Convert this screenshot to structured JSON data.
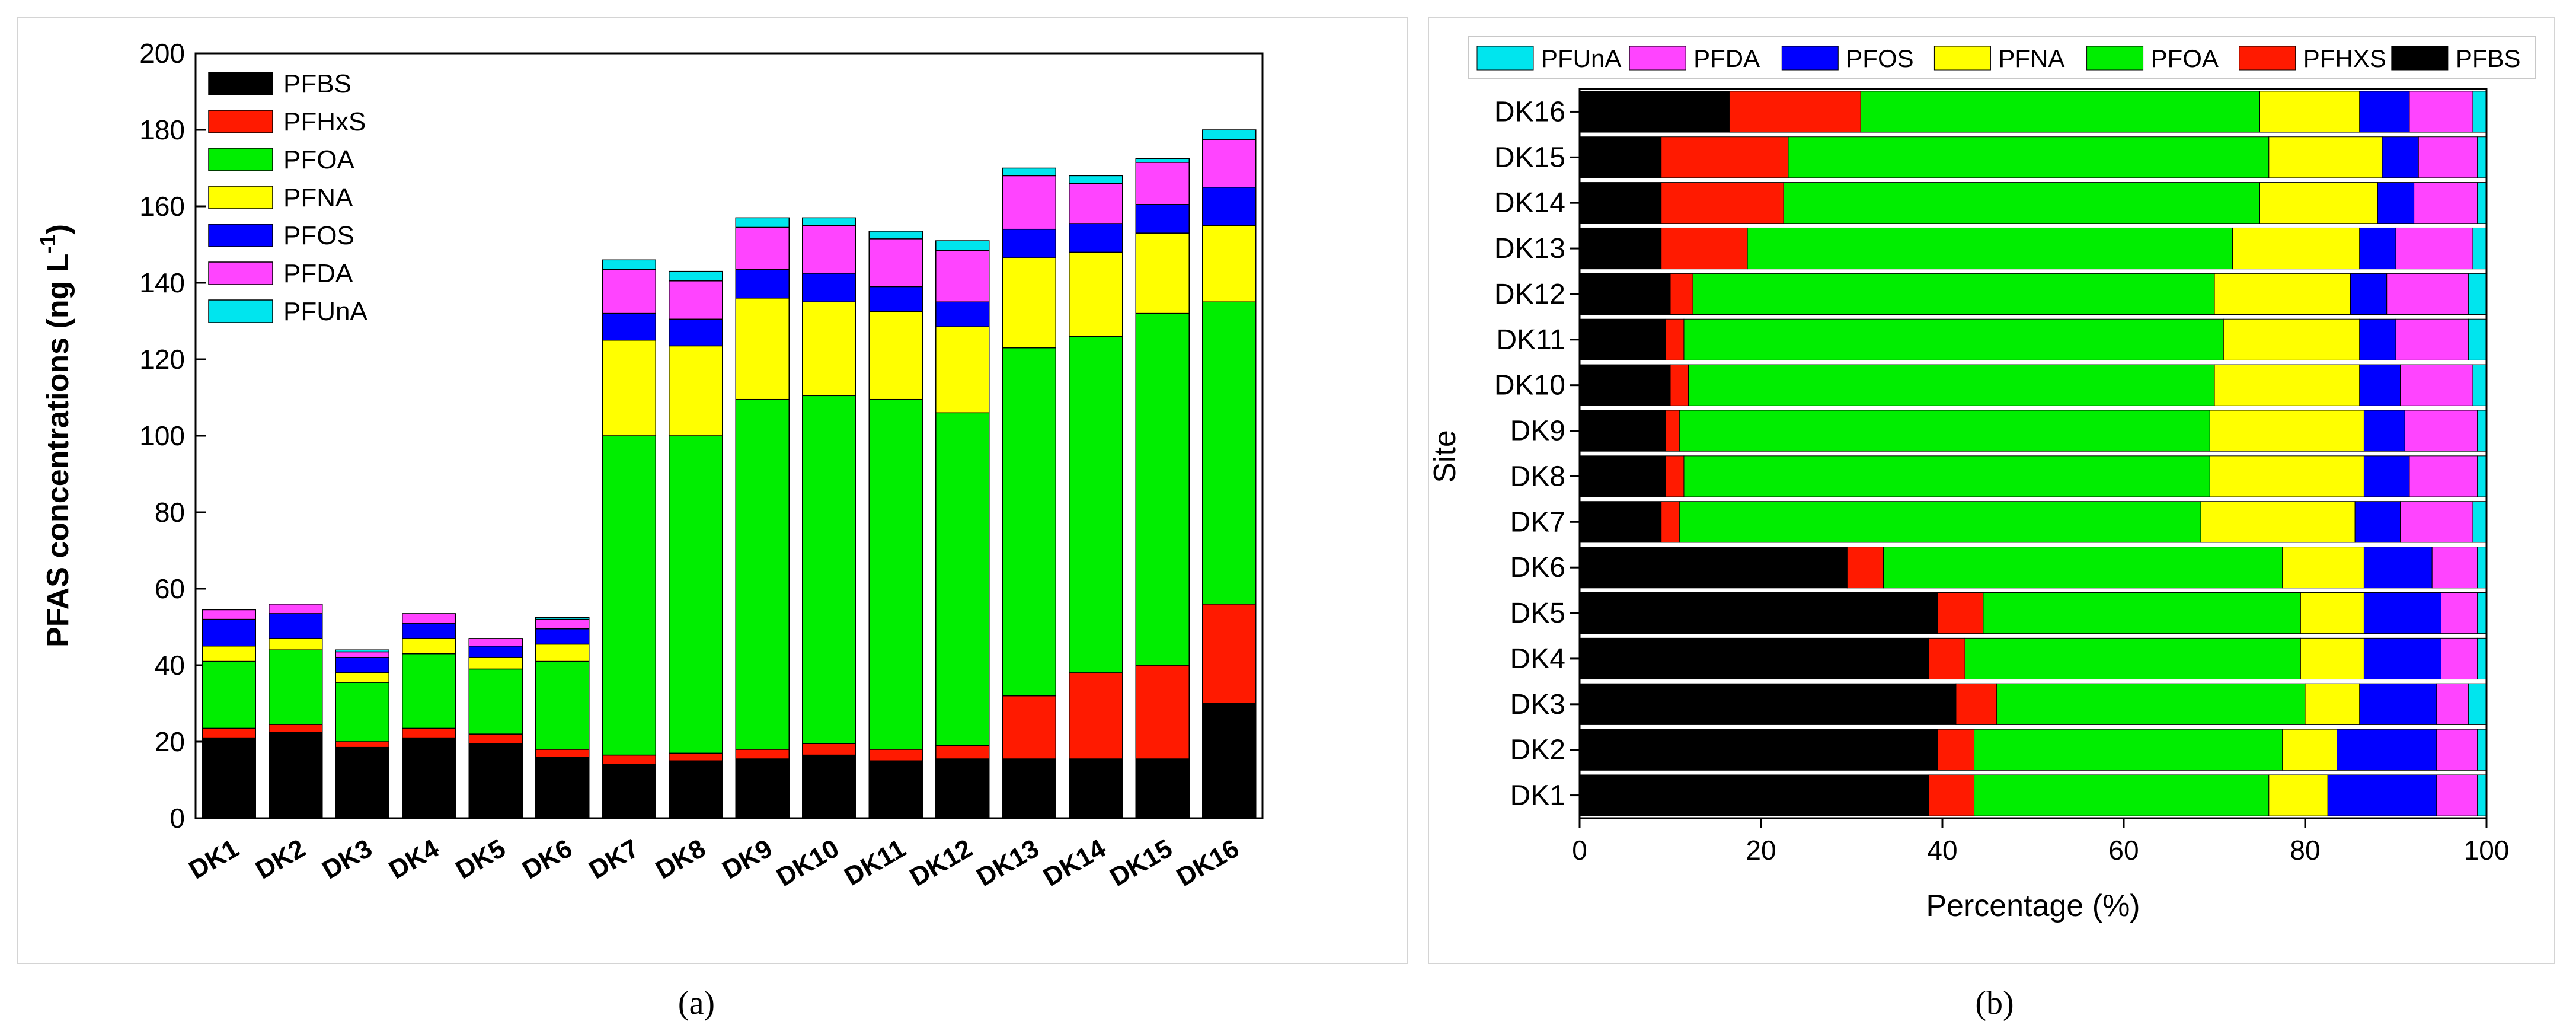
{
  "chart_data": [
    {
      "type": "bar",
      "stacked": true,
      "panel_caption": "(a)",
      "ylabel": "PFAS concentrations (ng L",
      "ylabel_superscript": "-1",
      "ylabel_suffix": ")",
      "xlabel": "",
      "ylim": [
        0,
        200
      ],
      "yticks": [
        0,
        20,
        40,
        60,
        80,
        100,
        120,
        140,
        160,
        180,
        200
      ],
      "categories": [
        "DK1",
        "DK2",
        "DK3",
        "DK4",
        "DK5",
        "DK6",
        "DK7",
        "DK8",
        "DK9",
        "DK10",
        "DK11",
        "DK12",
        "DK13",
        "DK14",
        "DK15",
        "DK16"
      ],
      "legend_position": "top-left",
      "series": [
        {
          "name": "PFBS",
          "color": "#000000",
          "values": [
            21,
            22.5,
            18.5,
            21,
            19.5,
            16,
            14,
            15,
            15.5,
            16.5,
            15,
            15.5,
            15.5,
            15.5,
            15.5,
            30
          ]
        },
        {
          "name": "PFHxS",
          "color": "#ff1a00",
          "values": [
            2.5,
            2,
            1.5,
            2.5,
            2.5,
            2,
            2.5,
            2,
            2.5,
            3,
            3,
            3.5,
            16.5,
            22.5,
            24.5,
            26
          ]
        },
        {
          "name": "PFOA",
          "color": "#00ee00",
          "values": [
            17.5,
            19.5,
            15.5,
            19.5,
            17,
            23,
            83.5,
            83,
            91.5,
            91,
            91.5,
            87,
            91,
            88,
            92,
            79
          ]
        },
        {
          "name": "PFNA",
          "color": "#ffff00",
          "values": [
            4,
            3,
            2.5,
            4,
            3,
            4.5,
            25,
            23.5,
            26.5,
            24.5,
            23,
            22.5,
            23.5,
            22,
            21,
            20
          ]
        },
        {
          "name": "PFOS",
          "color": "#0000ff",
          "values": [
            7,
            6.5,
            4,
            4,
            3,
            4,
            7,
            7,
            7.5,
            7.5,
            6.5,
            6.5,
            7.5,
            7.5,
            7.5,
            10
          ]
        },
        {
          "name": "PFDA",
          "color": "#ff44ff",
          "values": [
            2.5,
            2.5,
            1.5,
            2.5,
            2,
            2.5,
            11.5,
            10,
            11,
            12.5,
            12.5,
            13.5,
            14,
            10.5,
            11,
            12.5
          ]
        },
        {
          "name": "PFUnA",
          "color": "#00e5ee",
          "values": [
            0,
            0,
            0.5,
            0,
            0,
            0.5,
            2.5,
            2.5,
            2.5,
            2,
            2,
            2.5,
            2,
            2,
            1,
            2.5
          ]
        }
      ]
    },
    {
      "type": "bar",
      "orientation": "horizontal",
      "stacked": true,
      "percent": true,
      "panel_caption": "(b)",
      "xlabel": "Percentage (%)",
      "ylabel": "Site",
      "xlim": [
        0,
        100
      ],
      "xticks": [
        0,
        20,
        40,
        60,
        80,
        100
      ],
      "categories": [
        "DK1",
        "DK2",
        "DK3",
        "DK4",
        "DK5",
        "DK6",
        "DK7",
        "DK8",
        "DK9",
        "DK10",
        "DK11",
        "DK12",
        "DK13",
        "DK14",
        "DK15",
        "DK16"
      ],
      "legend_position": "top",
      "legend_order": [
        "PFUnA",
        "PFDA",
        "PFOS",
        "PFNA",
        "PFOA",
        "PFHXS",
        "PFBS"
      ],
      "series": [
        {
          "name": "PFBS",
          "color": "#000000",
          "values": [
            38.5,
            39.5,
            41.5,
            38.5,
            39.5,
            29.5,
            9,
            9.5,
            9.5,
            10,
            9.5,
            10,
            9,
            9,
            9,
            16.5
          ]
        },
        {
          "name": "PFHXS",
          "color": "#ff1a00",
          "values": [
            5,
            4,
            4.5,
            4,
            5,
            4,
            2,
            2,
            1.5,
            2,
            2,
            2.5,
            9.5,
            13.5,
            14,
            14.5
          ]
        },
        {
          "name": "PFOA",
          "color": "#00ee00",
          "values": [
            32.5,
            34,
            34,
            37,
            35,
            44,
            57.5,
            58,
            58.5,
            58,
            59.5,
            57.5,
            53.5,
            52.5,
            53,
            44
          ]
        },
        {
          "name": "PFNA",
          "color": "#ffff00",
          "values": [
            6.5,
            6,
            6,
            7,
            7,
            9,
            17,
            17,
            17,
            16,
            15,
            15,
            14,
            13,
            12.5,
            11
          ]
        },
        {
          "name": "PFOS",
          "color": "#0000ff",
          "values": [
            12,
            11,
            8.5,
            8.5,
            8.5,
            7.5,
            5,
            5,
            4.5,
            4.5,
            4,
            4,
            4,
            4,
            4,
            5.5
          ]
        },
        {
          "name": "PFDA",
          "color": "#ff44ff",
          "values": [
            4.5,
            4.5,
            3.5,
            4,
            4,
            5,
            8,
            7.5,
            8,
            8,
            8,
            9,
            8.5,
            7,
            6.5,
            7
          ]
        },
        {
          "name": "PFUnA",
          "color": "#00e5ee",
          "values": [
            1,
            1,
            2,
            1,
            1,
            1,
            1.5,
            1,
            1,
            1.5,
            2,
            2,
            1.5,
            1,
            1,
            1.5
          ]
        }
      ]
    }
  ]
}
